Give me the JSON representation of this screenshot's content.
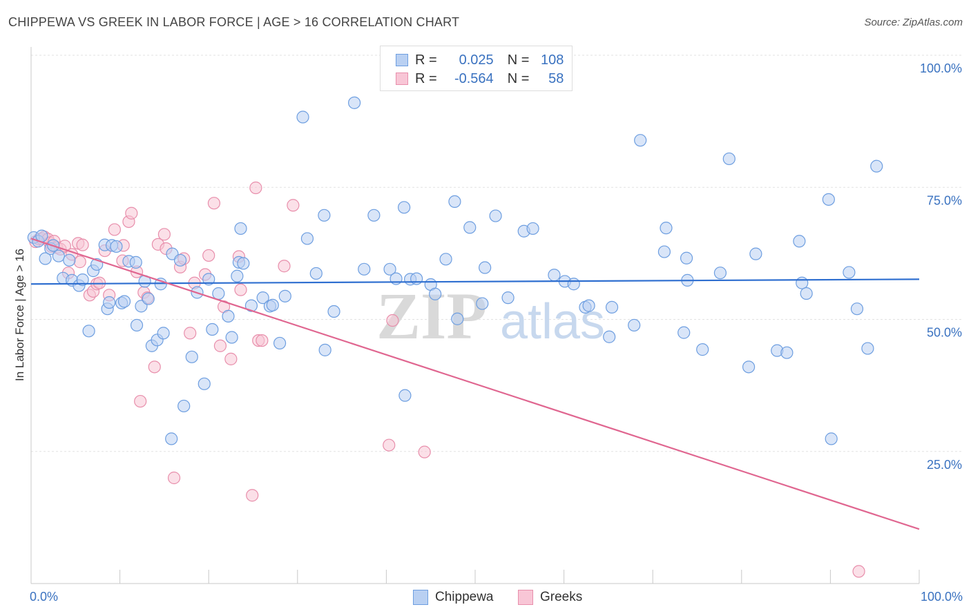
{
  "title": "CHIPPEWA VS GREEK IN LABOR FORCE | AGE > 16 CORRELATION CHART",
  "source": "Source: ZipAtlas.com",
  "watermark": {
    "zip": "ZIP",
    "atlas": "atlas"
  },
  "legend": {
    "r_label": "R =",
    "n_label": "N =",
    "rows": [
      {
        "r": "0.025",
        "n": "108",
        "fill": "#b9d0f2",
        "stroke": "#6d9ee0"
      },
      {
        "r": "-0.564",
        "n": "58",
        "fill": "#f8c6d6",
        "stroke": "#e88eab"
      }
    ]
  },
  "colors": {
    "chippewa_fill": "#b9d0f2",
    "chippewa_stroke": "#6d9ee0",
    "chippewa_line": "#2f6fd0",
    "greeks_fill": "#f8c6d6",
    "greeks_stroke": "#e88eab",
    "greeks_line": "#e06690",
    "tick_label": "#3a72c0"
  },
  "chart_data": {
    "type": "scatter",
    "ylabel": "In Labor Force | Age > 16",
    "xlim": [
      0,
      100
    ],
    "ylim": [
      0,
      100
    ],
    "x_tick_labels": [
      "0.0%",
      "100.0%"
    ],
    "y_ticks": [
      {
        "value": 25,
        "label": "25.0%"
      },
      {
        "value": 50,
        "label": "50.0%"
      },
      {
        "value": 75,
        "label": "75.0%"
      },
      {
        "value": 100,
        "label": "100.0%"
      }
    ],
    "series": [
      {
        "name": "Chippewa",
        "trend": {
          "x": [
            0,
            100
          ],
          "y": [
            56.7,
            57.6
          ]
        },
        "points": [
          [
            0.3,
            65.5
          ],
          [
            0.8,
            64.8
          ],
          [
            1.2,
            65.8
          ],
          [
            1.6,
            61.5
          ],
          [
            2.2,
            63.4
          ],
          [
            2.5,
            64.0
          ],
          [
            3.1,
            62.0
          ],
          [
            3.6,
            57.8
          ],
          [
            4.3,
            61.2
          ],
          [
            4.6,
            57.4
          ],
          [
            5.4,
            56.4
          ],
          [
            5.8,
            57.5
          ],
          [
            6.5,
            47.8
          ],
          [
            7.0,
            59.2
          ],
          [
            7.4,
            60.4
          ],
          [
            8.3,
            64.1
          ],
          [
            8.6,
            52.0
          ],
          [
            8.8,
            53.2
          ],
          [
            9.1,
            64.0
          ],
          [
            9.6,
            63.8
          ],
          [
            10.2,
            53.1
          ],
          [
            10.5,
            53.4
          ],
          [
            11.0,
            61.0
          ],
          [
            11.8,
            60.8
          ],
          [
            11.9,
            48.9
          ],
          [
            12.4,
            52.5
          ],
          [
            12.8,
            57.2
          ],
          [
            13.2,
            53.9
          ],
          [
            13.6,
            45.0
          ],
          [
            14.2,
            46.1
          ],
          [
            14.6,
            56.7
          ],
          [
            14.9,
            47.4
          ],
          [
            15.8,
            27.4
          ],
          [
            15.9,
            62.4
          ],
          [
            16.8,
            61.2
          ],
          [
            17.2,
            33.6
          ],
          [
            18.1,
            42.9
          ],
          [
            18.7,
            55.1
          ],
          [
            19.5,
            37.8
          ],
          [
            20.0,
            57.6
          ],
          [
            20.4,
            48.1
          ],
          [
            21.1,
            54.9
          ],
          [
            22.2,
            50.6
          ],
          [
            22.6,
            46.6
          ],
          [
            23.2,
            58.2
          ],
          [
            23.4,
            60.8
          ],
          [
            23.6,
            67.2
          ],
          [
            23.9,
            60.6
          ],
          [
            24.8,
            52.6
          ],
          [
            26.1,
            54.1
          ],
          [
            26.9,
            52.5
          ],
          [
            27.2,
            52.7
          ],
          [
            28.0,
            45.5
          ],
          [
            28.6,
            54.4
          ],
          [
            30.6,
            88.3
          ],
          [
            31.1,
            65.3
          ],
          [
            32.1,
            58.7
          ],
          [
            33.0,
            69.7
          ],
          [
            33.1,
            44.2
          ],
          [
            34.1,
            51.5
          ],
          [
            36.4,
            91.0
          ],
          [
            37.5,
            59.5
          ],
          [
            38.6,
            69.7
          ],
          [
            40.4,
            59.5
          ],
          [
            41.1,
            57.7
          ],
          [
            42.0,
            71.2
          ],
          [
            42.1,
            35.6
          ],
          [
            42.7,
            57.6
          ],
          [
            43.4,
            57.7
          ],
          [
            45.0,
            56.6
          ],
          [
            45.5,
            54.8
          ],
          [
            46.7,
            61.4
          ],
          [
            47.7,
            72.3
          ],
          [
            48.0,
            50.1
          ],
          [
            49.4,
            67.4
          ],
          [
            50.8,
            53.0
          ],
          [
            51.1,
            59.8
          ],
          [
            52.3,
            69.6
          ],
          [
            53.7,
            54.1
          ],
          [
            55.5,
            66.7
          ],
          [
            56.5,
            67.2
          ],
          [
            58.9,
            58.4
          ],
          [
            60.1,
            57.2
          ],
          [
            61.1,
            56.7
          ],
          [
            62.4,
            52.3
          ],
          [
            62.8,
            52.6
          ],
          [
            65.1,
            46.7
          ],
          [
            65.4,
            52.3
          ],
          [
            67.9,
            48.9
          ],
          [
            68.6,
            83.9
          ],
          [
            71.3,
            62.8
          ],
          [
            71.5,
            67.3
          ],
          [
            73.5,
            47.5
          ],
          [
            73.8,
            61.6
          ],
          [
            73.9,
            57.4
          ],
          [
            75.6,
            44.3
          ],
          [
            77.6,
            58.8
          ],
          [
            78.6,
            80.4
          ],
          [
            80.8,
            41.0
          ],
          [
            81.6,
            62.4
          ],
          [
            84.0,
            44.1
          ],
          [
            85.1,
            43.7
          ],
          [
            86.5,
            64.8
          ],
          [
            86.8,
            56.9
          ],
          [
            87.3,
            54.9
          ],
          [
            89.8,
            72.7
          ],
          [
            90.1,
            27.4
          ],
          [
            92.1,
            58.9
          ],
          [
            93.0,
            52.0
          ],
          [
            94.2,
            44.5
          ],
          [
            95.2,
            79.0
          ]
        ]
      },
      {
        "name": "Greeks",
        "trend": {
          "x": [
            0,
            100
          ],
          "y": [
            65.3,
            10.3
          ]
        },
        "points": [
          [
            0.5,
            64.7
          ],
          [
            0.9,
            65.2
          ],
          [
            1.2,
            65.3
          ],
          [
            1.5,
            65.6
          ],
          [
            1.9,
            65.2
          ],
          [
            2.1,
            64.5
          ],
          [
            2.3,
            63.8
          ],
          [
            2.6,
            64.8
          ],
          [
            2.9,
            63.6
          ],
          [
            3.3,
            63.3
          ],
          [
            3.8,
            63.9
          ],
          [
            4.2,
            58.8
          ],
          [
            4.6,
            62.3
          ],
          [
            5.3,
            64.4
          ],
          [
            5.5,
            60.9
          ],
          [
            5.8,
            64.1
          ],
          [
            6.6,
            54.6
          ],
          [
            7.0,
            55.3
          ],
          [
            7.4,
            56.7
          ],
          [
            7.7,
            56.9
          ],
          [
            8.3,
            63.0
          ],
          [
            8.8,
            54.6
          ],
          [
            9.4,
            67.0
          ],
          [
            10.3,
            61.1
          ],
          [
            10.4,
            64.0
          ],
          [
            11.0,
            68.5
          ],
          [
            11.3,
            70.1
          ],
          [
            11.9,
            59.0
          ],
          [
            12.3,
            34.5
          ],
          [
            12.7,
            55.1
          ],
          [
            13.1,
            54.1
          ],
          [
            13.9,
            41.0
          ],
          [
            14.3,
            64.2
          ],
          [
            15.0,
            66.1
          ],
          [
            15.2,
            63.4
          ],
          [
            16.1,
            20.0
          ],
          [
            16.8,
            59.9
          ],
          [
            17.2,
            61.5
          ],
          [
            17.9,
            47.4
          ],
          [
            18.4,
            56.9
          ],
          [
            19.6,
            58.5
          ],
          [
            20.0,
            62.1
          ],
          [
            20.6,
            72.0
          ],
          [
            21.3,
            45.0
          ],
          [
            21.7,
            52.4
          ],
          [
            22.5,
            42.5
          ],
          [
            23.4,
            61.9
          ],
          [
            23.6,
            55.6
          ],
          [
            24.9,
            16.7
          ],
          [
            25.3,
            74.9
          ],
          [
            25.6,
            46.0
          ],
          [
            26.0,
            46.0
          ],
          [
            28.5,
            60.1
          ],
          [
            29.5,
            71.6
          ],
          [
            40.3,
            26.2
          ],
          [
            40.7,
            49.8
          ],
          [
            44.3,
            24.9
          ],
          [
            93.2,
            2.3
          ]
        ]
      }
    ]
  }
}
